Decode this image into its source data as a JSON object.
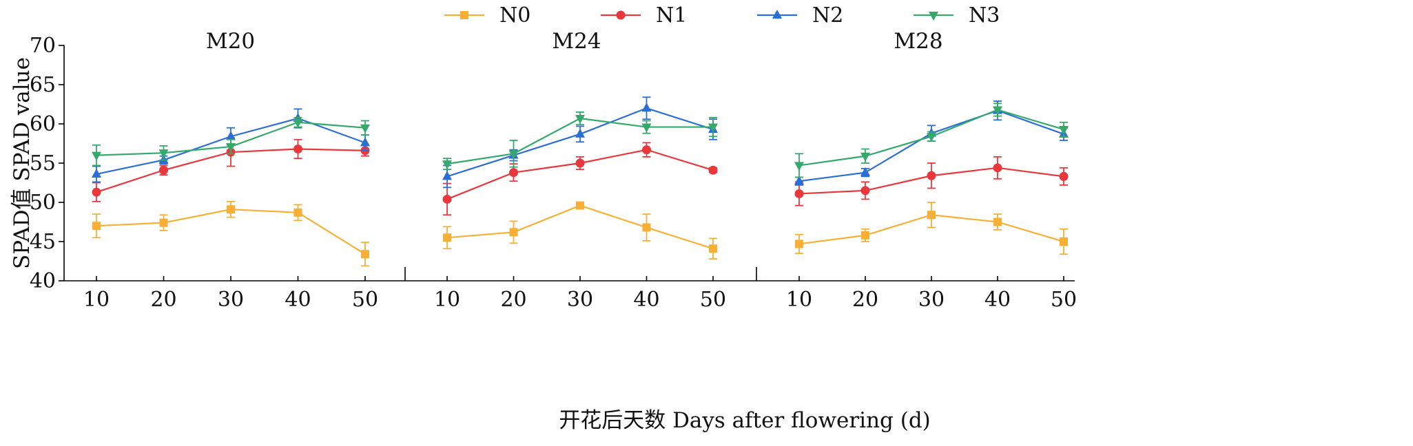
{
  "chart_data": {
    "type": "line",
    "ylabel": "SPAD值 SPAD value",
    "xlabel": "开花后天数 Days after flowering (d)",
    "ylim": [
      40,
      70
    ],
    "yticks": [
      40,
      45,
      50,
      55,
      60,
      65,
      70
    ],
    "x": [
      10,
      20,
      30,
      40,
      50
    ],
    "legend_position": "top-center",
    "grid": false,
    "series_styles": [
      {
        "name": "N0",
        "color": "#F7B035",
        "marker": "square"
      },
      {
        "name": "N1",
        "color": "#E8383D",
        "marker": "circle"
      },
      {
        "name": "N2",
        "color": "#2B6FD6",
        "marker": "triangle-up"
      },
      {
        "name": "N3",
        "color": "#35A86B",
        "marker": "triangle-down"
      }
    ],
    "panels": [
      {
        "title": "M20",
        "series": [
          {
            "name": "N0",
            "values": [
              47.0,
              47.4,
              49.1,
              48.7,
              43.4
            ],
            "errors": [
              1.5,
              1.0,
              1.0,
              1.0,
              1.5
            ]
          },
          {
            "name": "N1",
            "values": [
              51.3,
              54.1,
              56.4,
              56.8,
              56.6
            ],
            "errors": [
              1.2,
              0.6,
              1.8,
              1.2,
              0.7
            ]
          },
          {
            "name": "N2",
            "values": [
              53.6,
              55.4,
              58.4,
              60.7,
              57.6
            ],
            "errors": [
              1.0,
              0.5,
              1.1,
              1.2,
              1.0
            ]
          },
          {
            "name": "N3",
            "values": [
              56.0,
              56.3,
              57.1,
              60.2,
              59.5
            ],
            "errors": [
              1.3,
              0.9,
              0.9,
              0.6,
              0.9
            ]
          }
        ]
      },
      {
        "title": "M24",
        "series": [
          {
            "name": "N0",
            "values": [
              45.5,
              46.2,
              49.6,
              46.8,
              44.1
            ],
            "errors": [
              1.4,
              1.4,
              0.4,
              1.7,
              1.3
            ]
          },
          {
            "name": "N1",
            "values": [
              50.4,
              53.8,
              55.0,
              56.7,
              54.1
            ],
            "errors": [
              2.0,
              1.1,
              0.8,
              0.9,
              0.3
            ]
          },
          {
            "name": "N2",
            "values": [
              53.3,
              56.0,
              58.7,
              62.0,
              59.3
            ],
            "errors": [
              1.4,
              0.7,
              1.0,
              1.4,
              1.3
            ]
          },
          {
            "name": "N3",
            "values": [
              54.9,
              56.2,
              60.7,
              59.6,
              59.6
            ],
            "errors": [
              0.7,
              1.7,
              0.8,
              0.8,
              1.2
            ]
          }
        ]
      },
      {
        "title": "M28",
        "series": [
          {
            "name": "N0",
            "values": [
              44.7,
              45.8,
              48.4,
              47.5,
              45.0
            ],
            "errors": [
              1.2,
              0.8,
              1.6,
              1.0,
              1.6
            ]
          },
          {
            "name": "N1",
            "values": [
              51.1,
              51.5,
              53.4,
              54.4,
              53.3
            ],
            "errors": [
              1.5,
              1.1,
              1.6,
              1.4,
              1.1
            ]
          },
          {
            "name": "N2",
            "values": [
              52.7,
              53.8,
              58.8,
              61.7,
              58.7
            ],
            "errors": [
              0.5,
              0.5,
              1.0,
              1.2,
              0.8
            ]
          },
          {
            "name": "N3",
            "values": [
              54.7,
              55.9,
              58.4,
              61.8,
              59.3
            ],
            "errors": [
              1.5,
              0.9,
              0.6,
              0.8,
              0.9
            ]
          }
        ]
      }
    ]
  }
}
